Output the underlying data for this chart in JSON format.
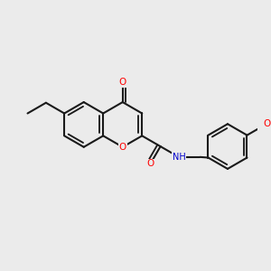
{
  "bg_color": "#ebebeb",
  "bond_color": "#1a1a1a",
  "bond_width": 1.5,
  "atom_colors": {
    "O": "#ff0000",
    "N": "#0000cc",
    "H": "#777777",
    "C": "#1a1a1a"
  }
}
